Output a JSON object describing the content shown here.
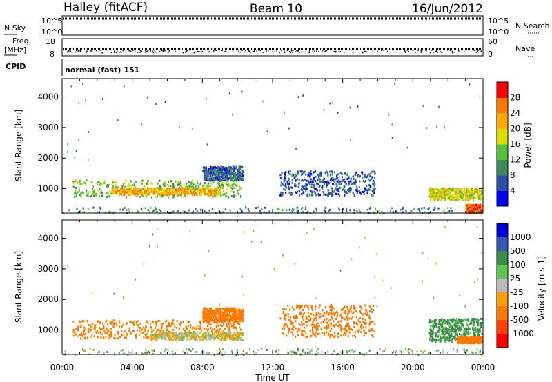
{
  "header": {
    "station": "Halley (fitACF)",
    "beam": "Beam 10",
    "date": "16/Jun/2012"
  },
  "top_panels": {
    "nsky_label": "N.Sky",
    "nsearch_label": "N.Search",
    "noise_ticks": [
      "10^5",
      "10^0"
    ],
    "freq_label_1": "Freq.",
    "freq_label_2": "[MHz]",
    "freq_ticks": [
      "18",
      "8"
    ],
    "nave_label": "Nave",
    "nave_ticks": [
      "60",
      "0"
    ],
    "cpid_label": "CPID",
    "cpid_value": "normal (fast) 151"
  },
  "colors": {
    "power_scale": [
      "#0000ff",
      "#2c4fa6",
      "#3f8a5a",
      "#55c03a",
      "#dddd00",
      "#ffaa00",
      "#ff7700",
      "#ff0000"
    ],
    "velocity_scale": [
      "#0000e0",
      "#3458b4",
      "#3b8c4a",
      "#5cc850",
      "#bbbbbb",
      "#ffa000",
      "#ff7800",
      "#ff4000",
      "#ff0000"
    ]
  },
  "chart_data": [
    {
      "type": "heatmap",
      "panel": "power",
      "ylabel": "Slant Range [km]",
      "xlabel": "Time UT",
      "x_ticks": [
        "00:00",
        "04:00",
        "08:00",
        "12:00",
        "16:00",
        "20:00",
        "00:00"
      ],
      "y_ticks": [
        1000,
        2000,
        3000,
        4000
      ],
      "xlim": [
        0,
        24
      ],
      "ylim": [
        200,
        4600
      ],
      "colorbar": {
        "label": "Power [dB]",
        "ticks": [
          "4",
          "8",
          "12",
          "16",
          "20",
          "24",
          "28"
        ],
        "range": [
          0,
          32
        ]
      },
      "patches": [
        {
          "t0": 0.6,
          "t1": 10.2,
          "r0": 750,
          "r1": 1300,
          "level": 14
        },
        {
          "t0": 2.8,
          "t1": 9.0,
          "r0": 820,
          "r1": 1050,
          "level": 22
        },
        {
          "t0": 8.0,
          "t1": 10.3,
          "r0": 1300,
          "r1": 1750,
          "level": 7
        },
        {
          "t0": 12.4,
          "t1": 17.8,
          "r0": 800,
          "r1": 1600,
          "level": 6
        },
        {
          "t0": 20.9,
          "t1": 23.9,
          "r0": 650,
          "r1": 1050,
          "level": 18
        },
        {
          "t0": 23.0,
          "t1": 23.9,
          "r0": 230,
          "r1": 500,
          "level": 27
        },
        {
          "t0": 0.0,
          "t1": 24.0,
          "r0": 220,
          "r1": 420,
          "level": 10
        }
      ]
    },
    {
      "type": "heatmap",
      "panel": "velocity",
      "ylabel": "Slant Range [km]",
      "xlabel": "Time UT",
      "x_ticks": [
        "00:00",
        "04:00",
        "08:00",
        "12:00",
        "16:00",
        "20:00",
        "00:00"
      ],
      "y_ticks": [
        1000,
        2000,
        3000,
        4000
      ],
      "xlim": [
        0,
        24
      ],
      "ylim": [
        200,
        4600
      ],
      "colorbar": {
        "label": "Velocity [m s-1]",
        "ticks": [
          "1000",
          "500",
          "100",
          "25",
          "-25",
          "-100",
          "-500",
          "-1000"
        ]
      },
      "patches": [
        {
          "t0": 0.6,
          "t1": 10.2,
          "r0": 750,
          "r1": 1350,
          "velocity": -150
        },
        {
          "t0": 5.0,
          "t1": 10.3,
          "r0": 700,
          "r1": 950,
          "velocity": -10
        },
        {
          "t0": 8.0,
          "t1": 10.3,
          "r0": 1300,
          "r1": 1750,
          "velocity": -300
        },
        {
          "t0": 12.4,
          "t1": 17.8,
          "r0": 800,
          "r1": 1850,
          "velocity": -200
        },
        {
          "t0": 20.9,
          "t1": 23.9,
          "r0": 650,
          "r1": 1400,
          "velocity": 150
        },
        {
          "t0": 22.5,
          "t1": 23.9,
          "r0": 600,
          "r1": 800,
          "velocity": -300
        },
        {
          "t0": 0.0,
          "t1": 24.0,
          "r0": 220,
          "r1": 420,
          "velocity": 50
        }
      ]
    }
  ]
}
